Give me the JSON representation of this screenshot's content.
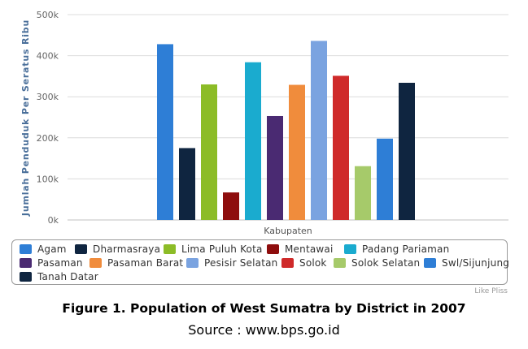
{
  "chart_data": {
    "type": "bar",
    "title": "",
    "xlabel": "Kabupaten",
    "ylabel": "Jumlah Penduduk Per Seratus Ribu",
    "ylim": [
      0,
      500000
    ],
    "y_ticks": [
      "0k",
      "100k",
      "200k",
      "300k",
      "400k",
      "500k"
    ],
    "grid": true,
    "legend_position": "bottom",
    "series": [
      {
        "name": "Agam",
        "value": 428000,
        "color": "#2e7ed6"
      },
      {
        "name": "Dharmasraya",
        "value": 175000,
        "color": "#0f2540"
      },
      {
        "name": "Lima Puluh Kota",
        "value": 330000,
        "color": "#8cbc27"
      },
      {
        "name": "Mentawai",
        "value": 67000,
        "color": "#8e0d0d"
      },
      {
        "name": "Padang Pariaman",
        "value": 384000,
        "color": "#1aabcf"
      },
      {
        "name": "Pasaman",
        "value": 253000,
        "color": "#4a2a72"
      },
      {
        "name": "Pasaman Barat",
        "value": 329000,
        "color": "#f08c3c"
      },
      {
        "name": "Pesisir Selatan",
        "value": 436000,
        "color": "#7aa3e0"
      },
      {
        "name": "Solok",
        "value": 351000,
        "color": "#cf2a2a"
      },
      {
        "name": "Solok Selatan",
        "value": 131000,
        "color": "#a6ca6a"
      },
      {
        "name": "Swl/Sijunjung",
        "value": 198000,
        "color": "#2e7ed6"
      },
      {
        "name": "Tanah Datar",
        "value": 334000,
        "color": "#0f2540"
      }
    ]
  },
  "credit": "Like Pliss",
  "caption": {
    "title": "Figure 1. Population of West Sumatra by District in 2007",
    "source": "Source : www.bps.go.id"
  }
}
